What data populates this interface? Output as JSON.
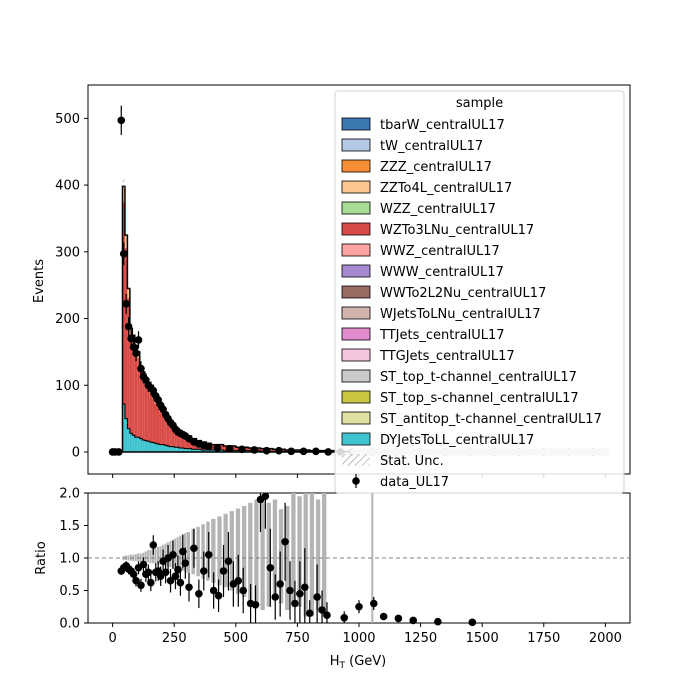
{
  "chart_data": [
    {
      "type": "bar",
      "panel": "main",
      "ylabel": "Events",
      "xlim": [
        -100,
        2100
      ],
      "ylim": [
        -33,
        550
      ],
      "yticks": [
        0,
        100,
        200,
        300,
        400,
        500
      ],
      "bin_edges": [
        20,
        30,
        40,
        50,
        60,
        70,
        80,
        90,
        100,
        110,
        120,
        130,
        140,
        150,
        160,
        170,
        180,
        190,
        200,
        210,
        220,
        230,
        240,
        250,
        260,
        270,
        280,
        290,
        300,
        320,
        340,
        360,
        380,
        400,
        450,
        500,
        550,
        600,
        650,
        700,
        750,
        800,
        850,
        900,
        950,
        1000
      ],
      "stack_top": [
        0,
        0,
        398,
        325,
        245,
        185,
        175,
        160,
        150,
        128,
        120,
        110,
        100,
        92,
        85,
        77,
        70,
        64,
        60,
        54,
        50,
        46,
        42,
        38,
        35,
        32,
        30,
        27,
        24,
        20,
        17,
        15,
        13,
        11,
        9,
        7,
        6,
        5,
        4,
        3,
        3,
        2,
        2,
        1,
        1
      ],
      "dy_top": [
        0,
        0,
        72,
        50,
        35,
        28,
        25,
        22,
        22,
        20,
        18,
        17,
        16,
        15,
        14,
        13,
        12,
        11,
        11,
        10,
        9,
        8,
        8,
        7,
        7,
        6,
        6,
        5,
        5,
        4,
        4,
        3,
        3,
        3,
        2,
        2,
        2,
        1,
        1,
        1,
        1,
        1,
        0,
        0,
        0
      ],
      "legend": {
        "title": "sample",
        "location": "top-right",
        "entries": [
          {
            "label": "tbarW_centralUL17",
            "color": "#3a79b1"
          },
          {
            "label": "tW_centralUL17",
            "color": "#b3c9e6"
          },
          {
            "label": "ZZZ_centralUL17",
            "color": "#f68e33"
          },
          {
            "label": "ZZTo4L_centralUL17",
            "color": "#fdc691"
          },
          {
            "label": "WZZ_centralUL17",
            "color": "#a6dc93"
          },
          {
            "label": "WZTo3LNu_centralUL17",
            "color": "#d94b47"
          },
          {
            "label": "WWZ_centralUL17",
            "color": "#fba3a3"
          },
          {
            "label": "WWW_centralUL17",
            "color": "#a68ad0"
          },
          {
            "label": "WWTo2L2Nu_centralUL17",
            "color": "#9a6d63"
          },
          {
            "label": "WJetsToLNu_centralUL17",
            "color": "#d2b3ad"
          },
          {
            "label": "TTJets_centralUL17",
            "color": "#e08bcd"
          },
          {
            "label": "TTGJets_centralUL17",
            "color": "#f5c5df"
          },
          {
            "label": "ST_top_t-channel_centralUL17",
            "color": "#c9c9c9"
          },
          {
            "label": "ST_top_s-channel_centralUL17",
            "color": "#c8c53f"
          },
          {
            "label": "ST_antitop_t-channel_centralUL17",
            "color": "#e0e0a2"
          },
          {
            "label": "DYJetsToLL_centralUL17",
            "color": "#3fc4cf"
          },
          {
            "label": "Stat. Unc.",
            "kind": "hatch"
          },
          {
            "label": "data_UL17",
            "kind": "marker"
          }
        ]
      },
      "data_points": {
        "name": "data_UL17",
        "x": [
          0,
          10,
          25,
          35,
          45,
          55,
          65,
          75,
          85,
          95,
          105,
          115,
          125,
          135,
          145,
          155,
          165,
          175,
          185,
          195,
          205,
          215,
          225,
          235,
          245,
          255,
          265,
          275,
          285,
          295,
          310,
          330,
          350,
          370,
          390,
          425,
          475,
          525,
          575,
          625,
          675,
          725,
          775,
          825,
          875,
          925,
          975,
          1050,
          1150,
          1250,
          1350,
          1450,
          1550,
          1650,
          1750,
          1850,
          1950,
          2000
        ],
        "y": [
          0,
          0,
          0,
          497,
          297,
          222,
          188,
          170,
          157,
          148,
          168,
          125,
          113,
          108,
          100,
          96,
          92,
          84,
          78,
          70,
          64,
          56,
          50,
          44,
          40,
          34,
          30,
          28,
          26,
          24,
          20,
          15,
          12,
          10,
          8,
          6,
          5,
          4,
          3,
          2,
          2,
          1,
          1,
          1,
          0,
          0,
          0,
          0,
          0,
          0,
          0,
          0,
          0,
          0,
          0,
          0,
          0,
          0
        ],
        "yerr": [
          0,
          0,
          0,
          22,
          17,
          15,
          14,
          13,
          12,
          12,
          13,
          11,
          10,
          10,
          10,
          10,
          9,
          9,
          9,
          8,
          8,
          7,
          7,
          7,
          6,
          6,
          5,
          5,
          5,
          5,
          4,
          4,
          3,
          3,
          3,
          2,
          2,
          2,
          2,
          1,
          1,
          1,
          1,
          1,
          0,
          0,
          0,
          0,
          0,
          0,
          0,
          0,
          0,
          0,
          0,
          0,
          0,
          0
        ]
      }
    },
    {
      "type": "scatter",
      "panel": "ratio",
      "ylabel": "Ratio",
      "xlabel": "H$_T$ (GeV)",
      "xlim": [
        -100,
        2100
      ],
      "ylim": [
        0,
        2.0
      ],
      "yticks": [
        0.0,
        0.5,
        1.0,
        1.5,
        2.0
      ],
      "xticks": [
        0,
        250,
        500,
        750,
        1000,
        1250,
        1500,
        1750,
        2000
      ],
      "reference_line": 1.0,
      "unc_band": {
        "x": [
          40,
          50,
          60,
          70,
          80,
          90,
          100,
          110,
          120,
          130,
          140,
          150,
          160,
          170,
          180,
          190,
          200,
          210,
          220,
          230,
          240,
          250,
          260,
          270,
          280,
          290,
          300,
          320,
          340,
          360,
          380,
          400,
          425,
          450,
          475,
          500,
          525,
          550,
          575,
          600,
          625,
          650,
          675,
          700,
          725,
          750,
          775,
          800,
          825,
          850,
          1050
        ],
        "lo": [
          0.97,
          0.97,
          0.96,
          0.96,
          0.95,
          0.95,
          0.95,
          0.94,
          0.94,
          0.93,
          0.93,
          0.92,
          0.92,
          0.91,
          0.9,
          0.9,
          0.89,
          0.88,
          0.87,
          0.86,
          0.85,
          0.84,
          0.83,
          0.82,
          0.8,
          0.79,
          0.77,
          0.75,
          0.72,
          0.68,
          0.65,
          0.62,
          0.58,
          0.55,
          0.5,
          0.45,
          0.4,
          0.35,
          0.3,
          0.2,
          0.25,
          0.35,
          0.3,
          0.2,
          0.3,
          0.25,
          0.1,
          0.1,
          0.2,
          0.1,
          0.0
        ],
        "hi": [
          1.03,
          1.04,
          1.04,
          1.05,
          1.05,
          1.06,
          1.07,
          1.07,
          1.08,
          1.1,
          1.12,
          1.13,
          1.14,
          1.15,
          1.17,
          1.18,
          1.2,
          1.22,
          1.24,
          1.26,
          1.28,
          1.3,
          1.32,
          1.34,
          1.36,
          1.38,
          1.4,
          1.45,
          1.48,
          1.52,
          1.56,
          1.6,
          1.64,
          1.68,
          1.72,
          1.76,
          1.8,
          1.85,
          1.9,
          2.0,
          1.85,
          1.9,
          1.75,
          1.8,
          2.0,
          1.95,
          2.0,
          2.0,
          1.9,
          2.0,
          2.0
        ]
      },
      "points": {
        "x": [
          35,
          45,
          55,
          65,
          75,
          85,
          95,
          105,
          115,
          125,
          135,
          145,
          155,
          165,
          175,
          185,
          195,
          205,
          215,
          225,
          235,
          245,
          255,
          265,
          275,
          285,
          295,
          310,
          330,
          350,
          370,
          390,
          410,
          430,
          450,
          470,
          490,
          510,
          530,
          560,
          580,
          600,
          620,
          640,
          660,
          680,
          700,
          720,
          740,
          760,
          780,
          800,
          830,
          850,
          870,
          940,
          1000,
          1060,
          1100,
          1160,
          1220,
          1320,
          1460
        ],
        "y": [
          0.8,
          0.85,
          0.88,
          0.83,
          0.8,
          0.75,
          0.65,
          0.85,
          0.58,
          0.9,
          0.75,
          0.78,
          0.62,
          1.2,
          0.78,
          0.8,
          0.72,
          0.95,
          0.78,
          1.0,
          0.65,
          1.05,
          0.72,
          0.82,
          0.62,
          1.1,
          0.92,
          0.55,
          1.15,
          0.45,
          0.8,
          1.05,
          0.5,
          0.42,
          0.8,
          0.95,
          0.6,
          0.65,
          0.5,
          0.3,
          0.28,
          1.9,
          1.95,
          0.85,
          0.4,
          0.6,
          1.25,
          0.5,
          0.3,
          0.45,
          0.55,
          0.15,
          0.4,
          0.2,
          0.12,
          0.08,
          0.25,
          0.3,
          0.1,
          0.07,
          0.04,
          0.02,
          0.01
        ],
        "yerr": [
          0.06,
          0.07,
          0.07,
          0.08,
          0.08,
          0.09,
          0.09,
          0.1,
          0.1,
          0.11,
          0.12,
          0.12,
          0.13,
          0.15,
          0.14,
          0.15,
          0.15,
          0.18,
          0.17,
          0.2,
          0.18,
          0.22,
          0.2,
          0.22,
          0.2,
          0.26,
          0.24,
          0.22,
          0.3,
          0.22,
          0.3,
          0.35,
          0.28,
          0.25,
          0.4,
          0.45,
          0.35,
          0.4,
          0.35,
          0.3,
          0.3,
          0.5,
          0.5,
          0.6,
          0.35,
          0.5,
          0.6,
          0.45,
          0.35,
          0.5,
          0.6,
          0.2,
          0.5,
          0.3,
          0.2,
          0.1,
          0.1,
          0.1,
          0.05,
          0.05,
          0.02,
          0.01,
          0.01
        ]
      }
    }
  ]
}
